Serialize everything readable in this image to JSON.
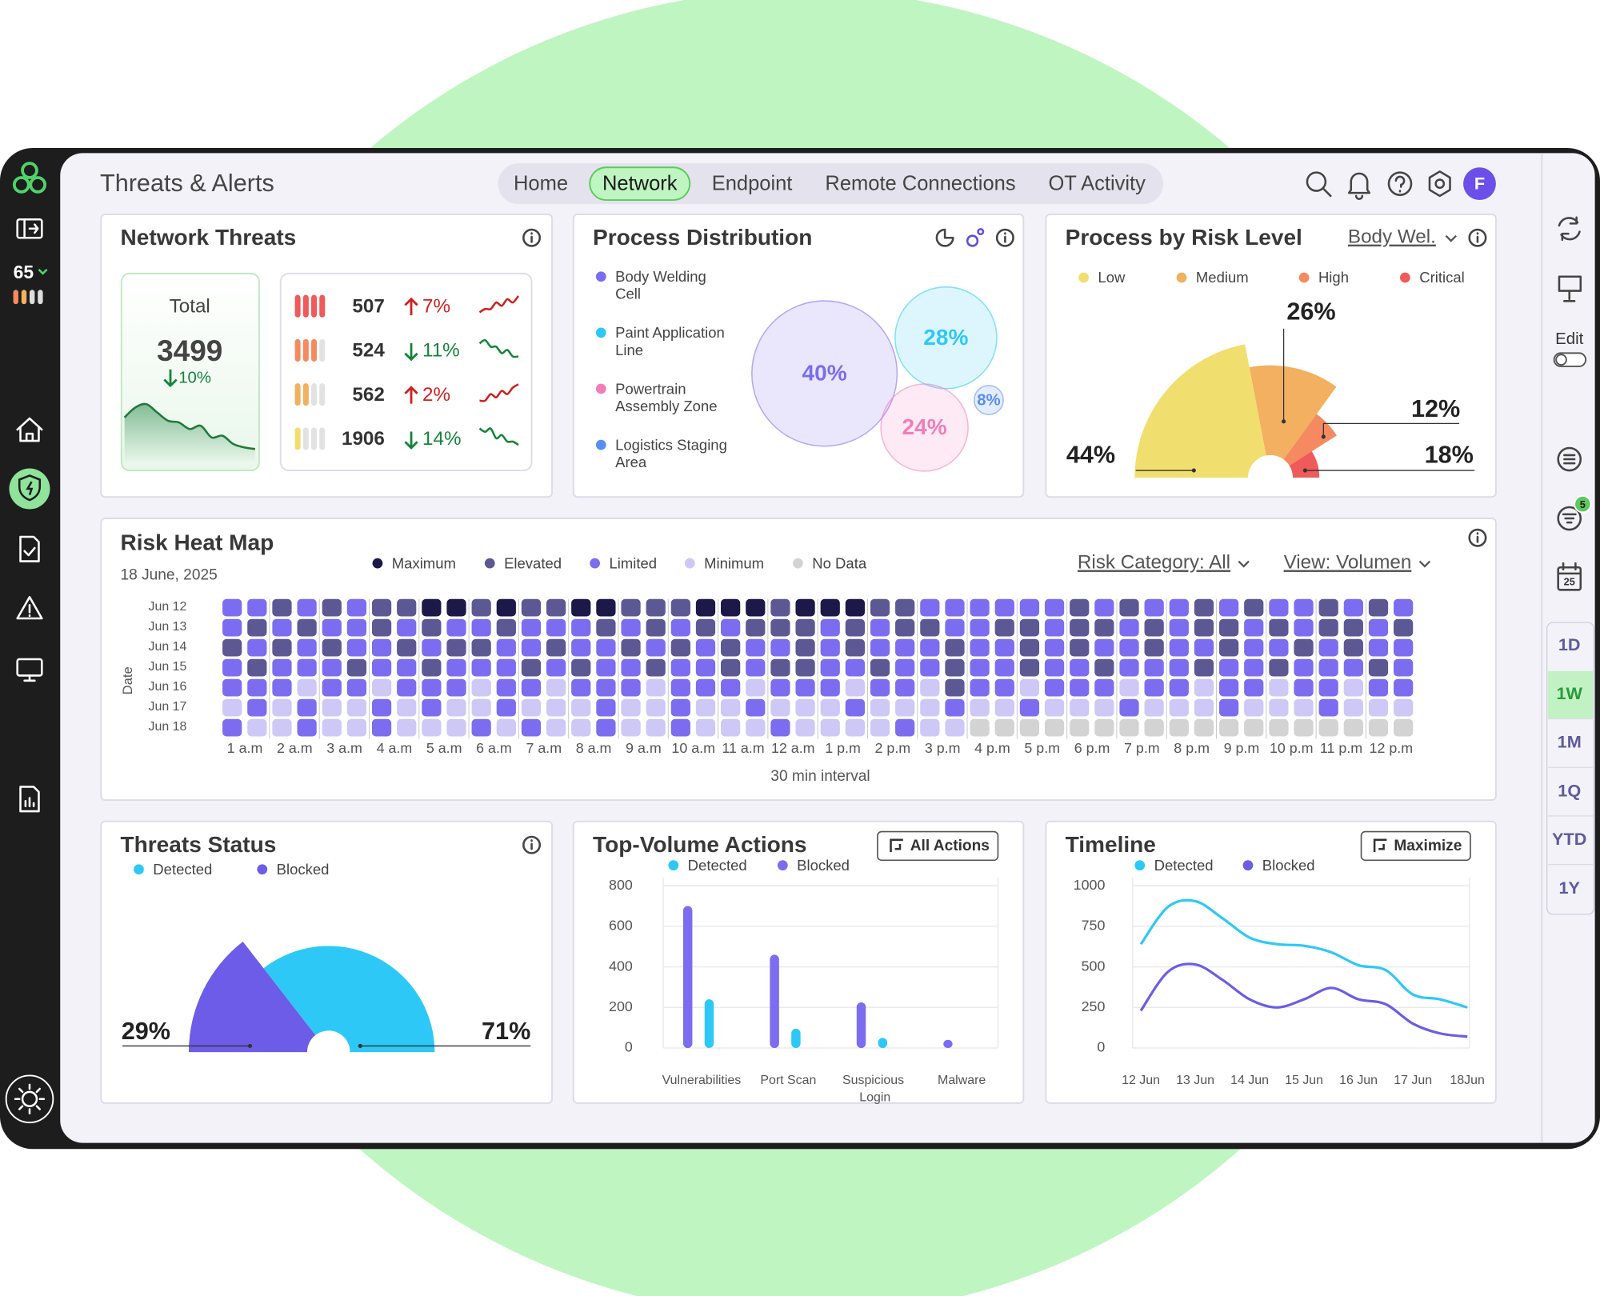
{
  "header": {
    "title": "Threats & Alerts",
    "tabs": [
      "Home",
      "Network",
      "Endpoint",
      "Remote Connections",
      "OT Activity"
    ],
    "active_tab": 1,
    "avatar": "F"
  },
  "sidebar": {
    "score": 65
  },
  "right_rail": {
    "edit": "Edit",
    "badge": 5,
    "calendar_day": 25,
    "ranges": [
      "1D",
      "1W",
      "1M",
      "1Q",
      "YTD",
      "1Y"
    ],
    "active_range": 1
  },
  "chart_data": [
    {
      "type": "kpi",
      "title": "Network Threats",
      "total_label": "Total",
      "total": 3499,
      "total_change": "10%",
      "total_direction": "down",
      "total_spark": [
        30,
        36,
        38,
        33,
        28,
        27,
        23,
        25,
        18,
        19,
        14,
        12,
        11
      ],
      "up_color": "#d0201f",
      "down_color": "#15843a",
      "rows": [
        {
          "value": 507,
          "change": "7%",
          "direction": "up",
          "color": "#ef5a5a",
          "spark": [
            2,
            3,
            3,
            5,
            4,
            6,
            5,
            7
          ]
        },
        {
          "value": 524,
          "change": "11%",
          "direction": "down",
          "color": "#f58a60",
          "spark": [
            6,
            7,
            5,
            5,
            3,
            4,
            2,
            2
          ]
        },
        {
          "value": 562,
          "change": "2%",
          "direction": "up",
          "color": "#f2b060",
          "spark": [
            2,
            2,
            4,
            3,
            5,
            4,
            6,
            7
          ]
        },
        {
          "value": 1906,
          "change": "14%",
          "direction": "down",
          "color": "#f0df6e",
          "spark": [
            7,
            6,
            7,
            4,
            5,
            3,
            3,
            2
          ]
        }
      ]
    },
    {
      "type": "bubble",
      "title": "Process Distribution",
      "series": [
        {
          "name": "Body Welding Cell",
          "color": "#7b6cf0",
          "value": 40,
          "value_label": "40%"
        },
        {
          "name": "Paint Application Line",
          "color": "#2ec8f7",
          "value": 28,
          "value_label": "28%"
        },
        {
          "name": "Powertrain Assembly Zone",
          "color": "#f27eb8",
          "value": 24,
          "value_label": "24%"
        },
        {
          "name": "Logistics Staging Area",
          "color": "#5a8ef0",
          "value": 8,
          "value_label": "8%"
        }
      ]
    },
    {
      "type": "polar",
      "title": "Process by Risk Level",
      "filter": "Body Wel.",
      "series": [
        {
          "name": "Low",
          "color": "#f0df6e",
          "value": 44,
          "value_label": "44%"
        },
        {
          "name": "Medium",
          "color": "#f2b060",
          "value": 26,
          "value_label": "26%"
        },
        {
          "name": "High",
          "color": "#f58a60",
          "value": 12,
          "value_label": "12%"
        },
        {
          "name": "Critical",
          "color": "#ef5a5a",
          "value": 18,
          "value_label": "18%"
        }
      ]
    },
    {
      "type": "heatmap",
      "title": "Risk Heat Map",
      "subtitle": "18 June, 2025",
      "filters": [
        "Risk Category: All",
        "View: Volumen"
      ],
      "y_label": "Date",
      "x_label": "30 min interval",
      "levels": [
        {
          "name": "Maximum",
          "color": "#1c1848"
        },
        {
          "name": "Elevated",
          "color": "#5c5894"
        },
        {
          "name": "Limited",
          "color": "#7c6df0"
        },
        {
          "name": "Minimum",
          "color": "#cdc8f6"
        },
        {
          "name": "No Data",
          "color": "#d3d3d3"
        }
      ],
      "rows": [
        "Jun 12",
        "Jun 13",
        "Jun 14",
        "Jun 15",
        "Jun 16",
        "Jun 17",
        "Jun 18"
      ],
      "x_labels": [
        "1 a.m",
        "2 a.m",
        "3 a.m",
        "4 a.m",
        "5 a.m",
        "6 a.m",
        "7 a.m",
        "8 a.m",
        "9 a.m",
        "10 a.m",
        "11 a.m",
        "12 a.m",
        "1 p.m",
        "2 p.m",
        "3 p.m",
        "4 p.m",
        "5 p.m",
        "6 p.m",
        "7 p.m",
        "8 p.m",
        "9 p.m",
        "10 p.m",
        "11 p.m",
        "12 p.m"
      ],
      "values": [
        [
          2,
          2,
          1,
          2,
          1,
          2,
          1,
          1,
          0,
          0,
          1,
          0,
          1,
          1,
          0,
          0,
          1,
          1,
          1,
          0,
          0,
          0,
          1,
          0,
          0,
          0,
          1,
          1,
          2,
          2,
          2,
          2,
          2,
          2,
          1,
          2,
          1,
          2,
          2,
          1,
          2,
          1,
          2,
          2,
          1,
          2,
          1,
          2
        ],
        [
          2,
          1,
          2,
          1,
          2,
          2,
          1,
          2,
          1,
          2,
          2,
          1,
          2,
          2,
          2,
          1,
          2,
          1,
          2,
          1,
          2,
          1,
          1,
          1,
          2,
          1,
          2,
          1,
          1,
          2,
          2,
          1,
          1,
          2,
          1,
          1,
          2,
          1,
          2,
          1,
          1,
          2,
          1,
          2,
          1,
          1,
          2,
          1
        ],
        [
          1,
          2,
          1,
          2,
          1,
          2,
          2,
          1,
          2,
          1,
          1,
          2,
          2,
          1,
          2,
          2,
          1,
          2,
          1,
          2,
          1,
          2,
          2,
          1,
          2,
          1,
          2,
          2,
          2,
          1,
          2,
          2,
          1,
          2,
          1,
          2,
          2,
          1,
          2,
          2,
          1,
          2,
          2,
          1,
          2,
          1,
          2,
          2
        ],
        [
          2,
          1,
          2,
          2,
          2,
          1,
          2,
          2,
          1,
          2,
          2,
          2,
          1,
          2,
          1,
          2,
          2,
          1,
          2,
          2,
          1,
          2,
          1,
          1,
          2,
          2,
          1,
          2,
          2,
          1,
          2,
          2,
          1,
          2,
          2,
          1,
          2,
          2,
          2,
          1,
          2,
          2,
          1,
          2,
          2,
          2,
          1,
          2
        ],
        [
          2,
          2,
          2,
          3,
          2,
          2,
          3,
          2,
          2,
          2,
          3,
          2,
          2,
          3,
          2,
          2,
          2,
          3,
          2,
          2,
          2,
          3,
          2,
          2,
          2,
          3,
          2,
          2,
          3,
          1,
          2,
          2,
          3,
          2,
          2,
          2,
          3,
          2,
          2,
          3,
          2,
          2,
          3,
          2,
          2,
          3,
          2,
          2
        ],
        [
          3,
          2,
          3,
          2,
          3,
          3,
          2,
          3,
          2,
          3,
          3,
          2,
          3,
          3,
          3,
          2,
          3,
          3,
          2,
          3,
          3,
          2,
          3,
          3,
          3,
          2,
          3,
          3,
          3,
          2,
          3,
          3,
          2,
          3,
          3,
          3,
          2,
          3,
          3,
          3,
          2,
          3,
          3,
          3,
          2,
          3,
          3,
          3
        ],
        [
          2,
          3,
          3,
          2,
          3,
          3,
          2,
          3,
          3,
          3,
          2,
          3,
          2,
          3,
          3,
          2,
          3,
          3,
          2,
          3,
          3,
          3,
          2,
          3,
          3,
          3,
          3,
          2,
          3,
          3,
          4,
          4,
          4,
          4,
          4,
          4,
          4,
          4,
          4,
          4,
          4,
          4,
          4,
          4,
          4,
          4,
          4,
          4
        ]
      ]
    },
    {
      "type": "semi",
      "title": "Threats Status",
      "series": [
        {
          "name": "Detected",
          "color": "#2ec8f7",
          "value": 71,
          "value_label": "71%"
        },
        {
          "name": "Blocked",
          "color": "#6c5ce7",
          "value": 29,
          "value_label": "29%"
        }
      ]
    },
    {
      "type": "bar",
      "title": "Top-Volume Actions",
      "button": "All Actions",
      "categories": [
        "Vulnerabilities",
        "Port Scan",
        "Suspicious Login",
        "Malware"
      ],
      "series": [
        {
          "name": "Detected",
          "color": "#2ec8f7",
          "values": [
            240,
            95,
            50,
            0
          ]
        },
        {
          "name": "Blocked",
          "color": "#7b6cf0",
          "values": [
            700,
            460,
            225,
            40
          ]
        }
      ],
      "ylim": [
        0,
        800
      ],
      "yticks": [
        0,
        200,
        400,
        600,
        800
      ],
      "grid": true
    },
    {
      "type": "line",
      "title": "Timeline",
      "button": "Maximize",
      "categories": [
        "12 Jun",
        null,
        "13 Jun",
        null,
        "14 Jun",
        null,
        "15 Jun",
        null,
        "16 Jun",
        null,
        "17 Jun",
        null,
        "18Jun"
      ],
      "series": [
        {
          "name": "Detected",
          "color": "#2ec8f7",
          "values": [
            640,
            870,
            905,
            800,
            680,
            640,
            630,
            590,
            510,
            480,
            330,
            300,
            250
          ]
        },
        {
          "name": "Blocked",
          "color": "#6c5ce7",
          "values": [
            230,
            470,
            515,
            420,
            300,
            250,
            300,
            370,
            300,
            270,
            150,
            90,
            70
          ]
        }
      ],
      "ylim": [
        0,
        1000
      ],
      "yticks": [
        0,
        250,
        500,
        750,
        1000
      ],
      "grid": true
    }
  ]
}
